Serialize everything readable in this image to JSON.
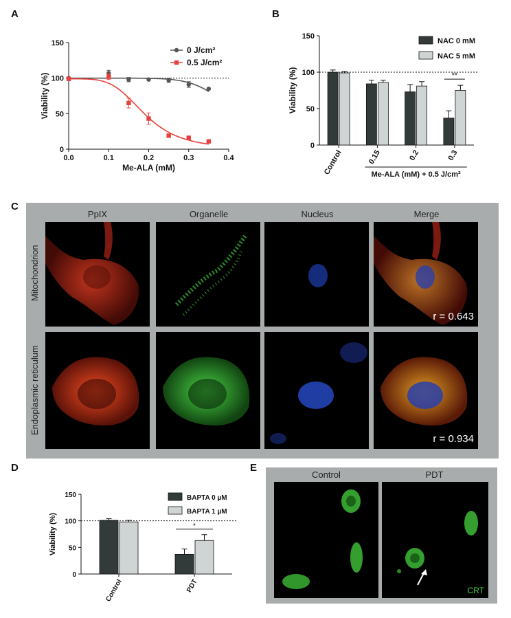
{
  "panels": {
    "A": "A",
    "B": "B",
    "C": "C",
    "D": "D",
    "E": "E"
  },
  "chart_data": [
    {
      "panel": "A",
      "type": "line",
      "xlabel": "Me-ALA (mM)",
      "ylabel": "Viability (%)",
      "xlim": [
        0.0,
        0.4
      ],
      "ylim": [
        0,
        150
      ],
      "xticks": [
        "0.0",
        "0.1",
        "0.2",
        "0.3",
        "0.4"
      ],
      "yticks": [
        "0",
        "50",
        "100",
        "150"
      ],
      "reference_line": 100,
      "legend_position": "top-right",
      "series": [
        {
          "name": "0 J/cm²",
          "color": "#555555",
          "marker": "circle",
          "x": [
            0,
            0.1,
            0.15,
            0.2,
            0.25,
            0.3,
            0.35
          ],
          "y": [
            100,
            107,
            98,
            98,
            97,
            91,
            85
          ],
          "err": [
            0,
            4,
            3,
            0,
            3,
            4,
            0
          ]
        },
        {
          "name": "0.5 J/cm²",
          "color": "#e8413c",
          "marker": "square",
          "x": [
            0,
            0.1,
            0.15,
            0.2,
            0.25,
            0.3,
            0.35
          ],
          "y": [
            99,
            102,
            65,
            43,
            19,
            16,
            11
          ],
          "err": [
            0,
            4,
            7,
            8,
            2,
            2,
            2
          ]
        }
      ]
    },
    {
      "panel": "B",
      "type": "bar",
      "ylabel": "Viability (%)",
      "ylim": [
        0,
        150
      ],
      "yticks": [
        "0",
        "50",
        "100",
        "150"
      ],
      "categories": [
        "Control",
        "0.15",
        "0.2",
        "0.3"
      ],
      "group_label": "Me-ALA (mM) + 0.5 J/cm²",
      "significance": {
        "text": "**",
        "category": "0.3"
      },
      "reference_line": 100,
      "legend_position": "top-right",
      "series": [
        {
          "name": "NAC 0 mM",
          "color": "#333b3a",
          "values": [
            100,
            84,
            73,
            37
          ],
          "err": [
            3,
            5,
            10,
            10
          ]
        },
        {
          "name": "NAC 5 mM",
          "color": "#cfd4d4",
          "values": [
            99,
            86,
            81,
            75
          ],
          "err": [
            2,
            3,
            6,
            7
          ]
        }
      ]
    },
    {
      "panel": "D",
      "type": "bar",
      "ylabel": "Viability (%)",
      "ylim": [
        0,
        150
      ],
      "yticks": [
        "0",
        "50",
        "100",
        "150"
      ],
      "categories": [
        "Control",
        "PDT"
      ],
      "significance": {
        "text": "*",
        "category": "PDT"
      },
      "reference_line": 100,
      "legend_position": "top-right",
      "series": [
        {
          "name": "BAPTA 0 µM",
          "color": "#333b3a",
          "values": [
            101,
            37
          ],
          "err": [
            3,
            10
          ]
        },
        {
          "name": "BAPTA 1 µM",
          "color": "#cfd4d4",
          "values": [
            98,
            63
          ],
          "err": [
            3,
            11
          ]
        }
      ]
    }
  ],
  "microscopy_c": {
    "columns": [
      "PpIX",
      "Organelle",
      "Nucleus",
      "Merge"
    ],
    "rows": [
      {
        "label": "Mitochondrion",
        "r_value": "r = 0.643"
      },
      {
        "label": "Endoplasmic reticulum",
        "r_value": "r = 0.934"
      }
    ],
    "colors": {
      "ppix": "#e0321e",
      "organelle": "#3fcf3a",
      "nucleus": "#2a52d8",
      "merge": "#d7861e"
    }
  },
  "microscopy_e": {
    "columns": [
      "Control",
      "PDT"
    ],
    "stain_label": "CRT",
    "stain_color": "#4fd14a"
  }
}
